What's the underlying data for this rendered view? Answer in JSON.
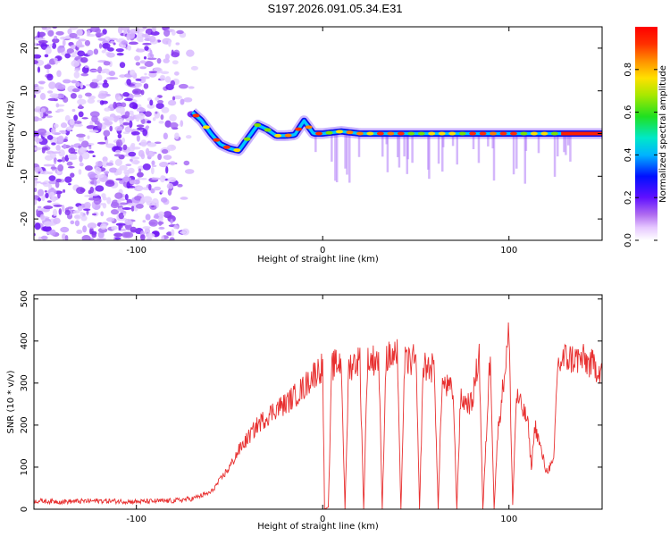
{
  "title": "S197.2026.091.05.34.E31",
  "chart_data": [
    {
      "type": "heatmap",
      "name": "spectrogram",
      "xlabel": "Height of straight line (km)",
      "ylabel": "Frequency (Hz)",
      "xlim": [
        -155,
        150
      ],
      "ylim": [
        -25,
        25
      ],
      "xticks": [
        -100,
        0,
        100
      ],
      "xtick_labels": [
        "-100",
        "0",
        "100"
      ],
      "yticks": [
        -20,
        -10,
        0,
        10,
        20
      ],
      "ytick_labels": [
        "-20",
        "-10",
        "0",
        "10",
        "20"
      ],
      "noise_region_x": [
        -155,
        -67
      ],
      "signal_track": {
        "x": [
          -70,
          -65,
          -60,
          -55,
          -50,
          -45,
          -40,
          -35,
          -30,
          -25,
          -20,
          -15,
          -10,
          -5,
          0,
          10,
          20,
          30,
          40,
          50,
          60,
          70,
          80,
          90,
          100,
          110,
          120,
          130,
          150
        ],
        "freq": [
          5,
          3,
          0,
          -2.5,
          -3.5,
          -4,
          -1,
          2,
          1,
          -0.5,
          -0.5,
          -0.3,
          3,
          0,
          0,
          0.5,
          0,
          0,
          0,
          0,
          0,
          0,
          0,
          0,
          0,
          0,
          0,
          0,
          0
        ]
      },
      "colorbar": {
        "label": "Normalized spectral amplitude",
        "range": [
          0,
          1
        ],
        "ticks": [
          0.0,
          0.2,
          0.4,
          0.6,
          0.8
        ],
        "tick_labels": [
          "0.0",
          "0.2",
          "0.4",
          "0.6",
          "0.8"
        ]
      }
    },
    {
      "type": "line",
      "name": "snr",
      "xlabel": "Height of straight line (km)",
      "ylabel": "SNR (10 * v/v)",
      "xlim": [
        -155,
        150
      ],
      "ylim": [
        0,
        510
      ],
      "xticks": [
        -100,
        0,
        100
      ],
      "xtick_labels": [
        "-100",
        "0",
        "100"
      ],
      "yticks": [
        0,
        100,
        200,
        300,
        400,
        500
      ],
      "ytick_labels": [
        "0",
        "100",
        "200",
        "300",
        "400",
        "500"
      ],
      "color": "#e83030",
      "series": [
        {
          "name": "SNR",
          "x": [
            -155,
            -140,
            -120,
            -100,
            -80,
            -70,
            -60,
            -55,
            -50,
            -45,
            -40,
            -35,
            -30,
            -25,
            -20,
            -15,
            -10,
            -5,
            0,
            1,
            3,
            5,
            10,
            12,
            14,
            20,
            22,
            24,
            30,
            32,
            34,
            40,
            42,
            44,
            50,
            52,
            54,
            60,
            62,
            64,
            70,
            72,
            74,
            80,
            84,
            86,
            90,
            92,
            94,
            100,
            102,
            104,
            110,
            112,
            114,
            120,
            124,
            126,
            130,
            140,
            150
          ],
          "y": [
            20,
            18,
            20,
            18,
            20,
            25,
            40,
            70,
            100,
            140,
            170,
            200,
            220,
            240,
            250,
            270,
            290,
            320,
            340,
            0,
            5,
            340,
            350,
            0,
            340,
            355,
            0,
            350,
            360,
            0,
            360,
            365,
            0,
            350,
            355,
            0,
            340,
            335,
            0,
            300,
            280,
            0,
            260,
            250,
            370,
            0,
            380,
            0,
            180,
            420,
            10,
            270,
            210,
            100,
            200,
            90,
            110,
            340,
            360,
            355,
            330
          ]
        }
      ]
    }
  ]
}
